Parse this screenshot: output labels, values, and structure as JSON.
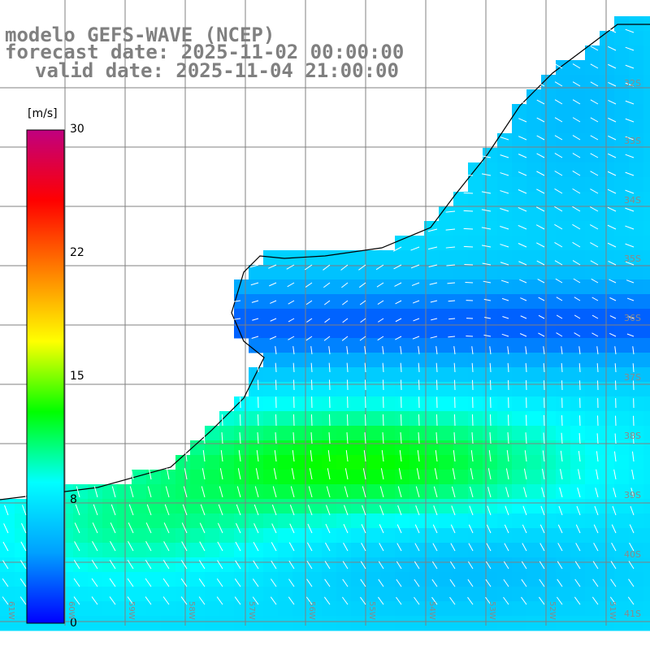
{
  "title": {
    "model": "modelo GEFS-WAVE (NCEP)",
    "forecast": "forecast date: 2025-11-02 00:00:00",
    "valid": "valid date: 2025-11-04 21:00:00"
  },
  "colorbar": {
    "unit": "[m/s]",
    "min": 0,
    "max": 30,
    "ticks": [
      "30",
      "22",
      "15",
      "8",
      "0"
    ],
    "tick_values": [
      30,
      22,
      15,
      8,
      0
    ],
    "colors": [
      "#0000ff",
      "#00a0ff",
      "#00ffff",
      "#00ff00",
      "#ffff00",
      "#ff8000",
      "#ff0000",
      "#c00080"
    ]
  },
  "map": {
    "grid_color": "#808080",
    "coast_color": "#000000",
    "land_color": "#ffffff",
    "arrow_color": "#ffffff",
    "lat_labels": [
      "32S",
      "33S",
      "34S",
      "35S",
      "36S",
      "37S",
      "38S",
      "39S",
      "40S",
      "41S"
    ],
    "lon_labels": [
      "61W",
      "60W",
      "59W",
      "58W",
      "57W",
      "56W",
      "55W",
      "54W",
      "53W",
      "52W",
      "51W"
    ]
  }
}
